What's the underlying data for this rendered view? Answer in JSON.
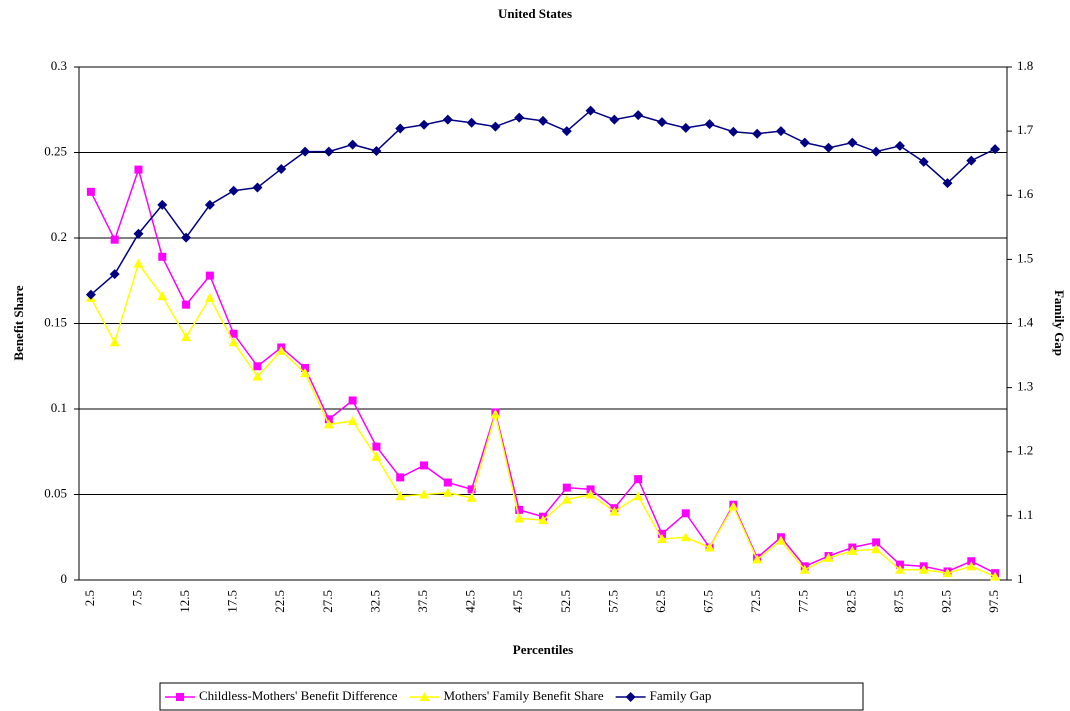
{
  "chart_data": {
    "type": "line",
    "title": "United States",
    "x_label": "Percentiles",
    "y_label": "Benefit Share",
    "y2_label": "Family Gap",
    "categories": [
      "2.5",
      null,
      "7.5",
      null,
      "12.5",
      null,
      "17.5",
      null,
      "22.5",
      null,
      "27.5",
      null,
      "32.5",
      null,
      "37.5",
      null,
      "42.5",
      null,
      "47.5",
      null,
      "52.5",
      null,
      "57.5",
      null,
      "62.5",
      null,
      "67.5",
      null,
      "72.5",
      null,
      "77.5",
      null,
      "82.5",
      null,
      "87.5",
      null,
      "92.5",
      null,
      "97.5"
    ],
    "series": [
      {
        "name": "Childless-Mothers' Benefit Difference",
        "color": "#ff00ff",
        "marker": "square",
        "values": [
          0.227,
          0.199,
          0.24,
          0.189,
          0.161,
          0.178,
          0.144,
          0.125,
          0.136,
          0.124,
          0.094,
          0.105,
          0.078,
          0.06,
          0.067,
          0.057,
          0.053,
          0.098,
          0.041,
          0.037,
          0.054,
          0.053,
          0.042,
          0.059,
          0.027,
          0.039,
          0.019,
          0.044,
          0.013,
          0.025,
          0.008,
          0.014,
          0.019,
          0.022,
          0.009,
          0.008,
          0.005,
          0.011,
          0.004
        ]
      },
      {
        "name": "Mothers' Family Benefit Share",
        "color": "#ffff00",
        "marker": "triangle",
        "values": [
          0.165,
          0.139,
          0.185,
          0.166,
          0.142,
          0.165,
          0.139,
          0.119,
          0.134,
          0.121,
          0.091,
          0.093,
          0.072,
          0.049,
          0.05,
          0.051,
          0.048,
          0.097,
          0.036,
          0.035,
          0.047,
          0.05,
          0.04,
          0.049,
          0.024,
          0.025,
          0.019,
          0.043,
          0.012,
          0.023,
          0.006,
          0.013,
          0.017,
          0.018,
          0.006,
          0.006,
          0.004,
          0.008,
          0.002
        ]
      },
      {
        "name": "Family Gap",
        "color": "#000080",
        "marker": "diamond",
        "axis": "y2",
        "values": [
          1.445,
          1.477,
          1.54,
          1.585,
          1.534,
          1.585,
          1.607,
          1.612,
          1.641,
          1.668,
          1.668,
          1.679,
          1.669,
          1.704,
          1.71,
          1.718,
          1.713,
          1.707,
          1.721,
          1.716,
          1.7,
          1.732,
          1.718,
          1.725,
          1.714,
          1.705,
          1.711,
          1.699,
          1.696,
          1.7,
          1.682,
          1.674,
          1.682,
          1.668,
          1.677,
          1.652,
          1.619,
          1.654,
          1.672
        ]
      }
    ],
    "ylim": [
      0,
      0.3
    ],
    "yticks": [
      0,
      0.05,
      0.1,
      0.15,
      0.2,
      0.25,
      0.3
    ],
    "y2lim": [
      1,
      1.8
    ],
    "y2ticks": [
      1,
      1.1,
      1.2,
      1.3,
      1.4,
      1.5,
      1.6,
      1.7,
      1.8
    ],
    "grid": true,
    "legend": "bottom"
  }
}
